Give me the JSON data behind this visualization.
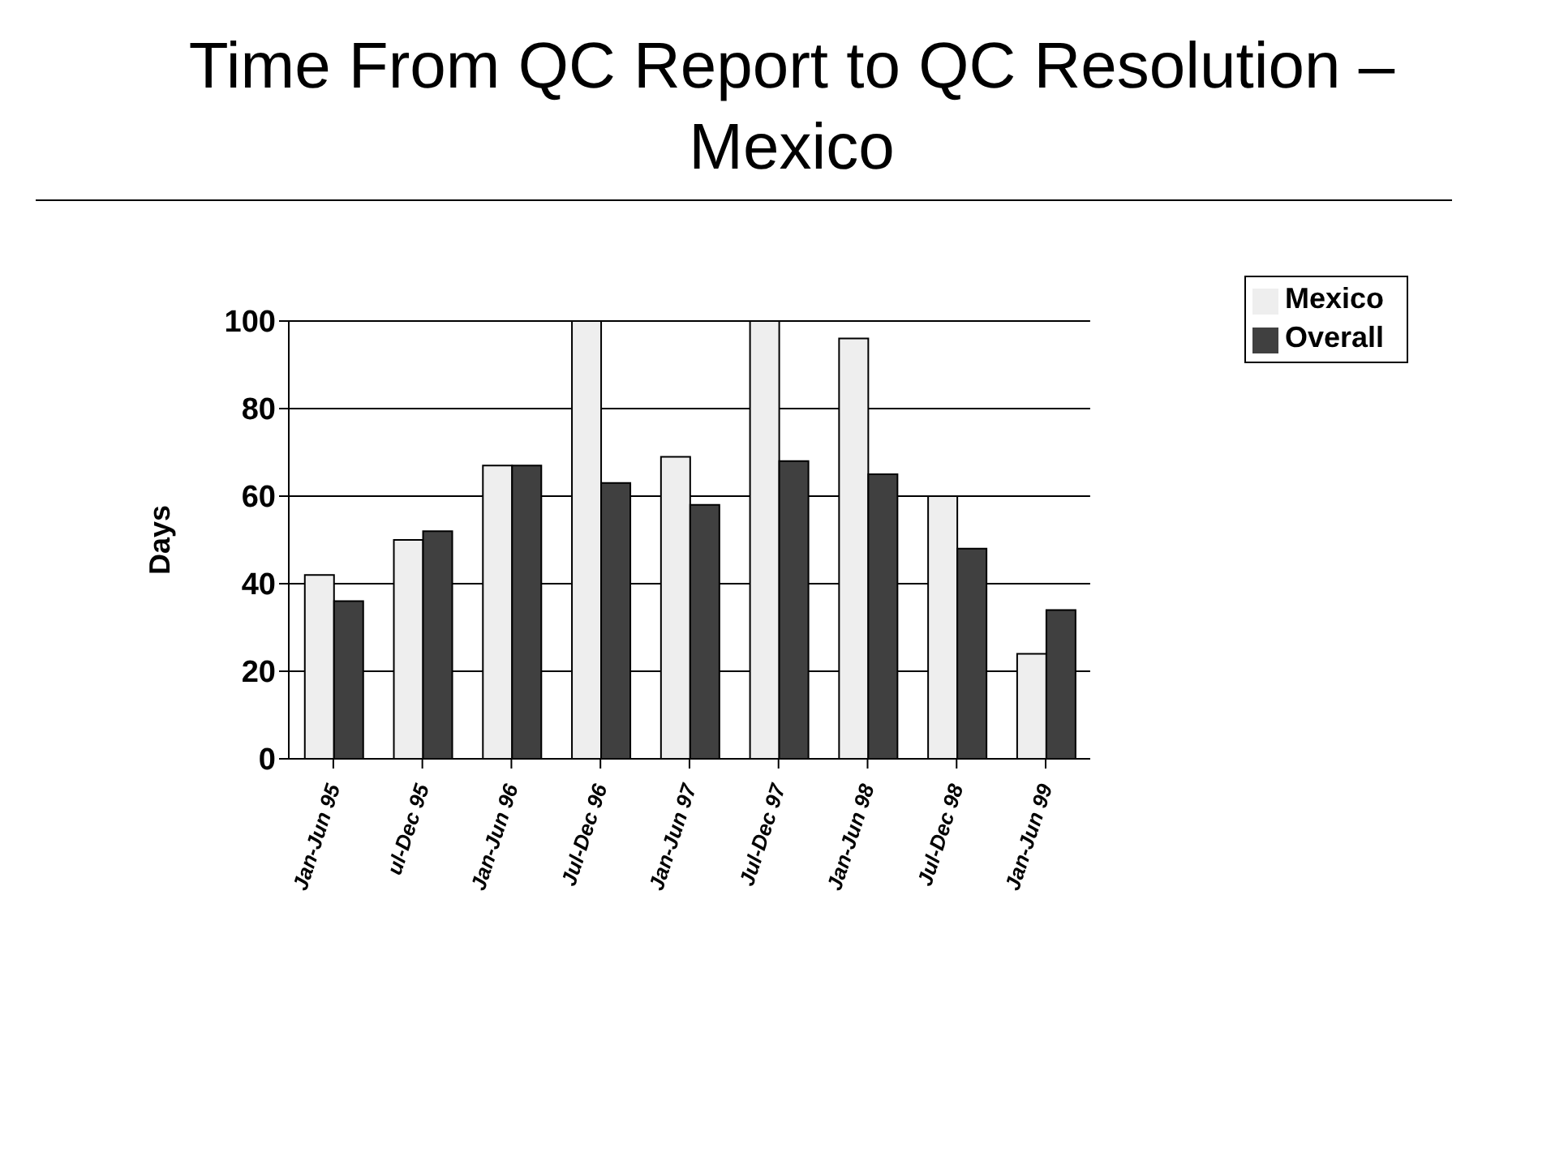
{
  "chart_data": {
    "type": "bar",
    "title": "Time From QC Report to QC Resolution – Mexico",
    "ylabel": "Days",
    "categories": [
      "Jan-Jun 95",
      "ul-Dec 95",
      "Jan-Jun 96",
      "Jul-Dec 96",
      "Jan-Jun 97",
      "Jul-Dec 97",
      "Jan-Jun 98",
      "Jul-Dec 98",
      "Jan-Jun 99"
    ],
    "series": [
      {
        "name": "Mexico",
        "color": "#eeeeee",
        "values": [
          42,
          50,
          67,
          100,
          69,
          100,
          96,
          60,
          24
        ]
      },
      {
        "name": "Overall",
        "color": "#404040",
        "values": [
          36,
          52,
          67,
          63,
          58,
          68,
          65,
          48,
          34
        ]
      }
    ],
    "ylim": [
      0,
      100
    ],
    "yticks": [
      0,
      20,
      40,
      60,
      80,
      100
    ],
    "grid": "y",
    "legend": "top right"
  }
}
